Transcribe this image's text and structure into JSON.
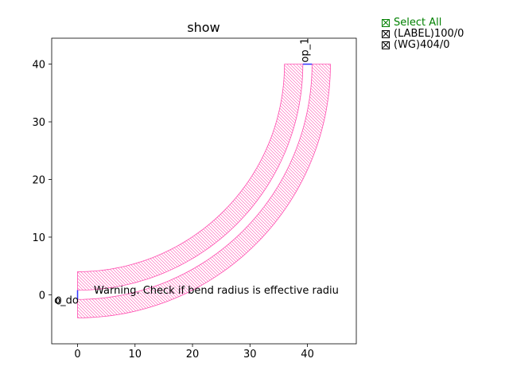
{
  "window": {
    "title": "show"
  },
  "chart_data": {
    "type": "layout",
    "title": "show",
    "xlabel": "",
    "ylabel": "",
    "xlim": [
      -4.5,
      48.5
    ],
    "ylim": [
      -8.5,
      44.5
    ],
    "x_ticks": [
      0,
      10,
      20,
      30,
      40
    ],
    "y_ticks": [
      0,
      10,
      20,
      30,
      40
    ],
    "grid": false,
    "colors": {
      "waveguide": "#ff4fb0",
      "port": "#3333ff",
      "text": "#000000"
    },
    "bend": {
      "radius": 40,
      "outer_width": 8,
      "gap": 1.6,
      "center": [
        0,
        40
      ]
    },
    "ports": [
      {
        "name": "o1",
        "label": "o_do",
        "x": 0,
        "y": 0
      },
      {
        "name": "o2",
        "label": "op_1",
        "x": 40,
        "y": 40
      }
    ],
    "tick_stub_label": "0",
    "annotation": {
      "text": "Warning. Check if bend radius is effective radiu",
      "x": 3,
      "y": 0.3
    }
  },
  "legend": {
    "items": [
      {
        "label": "Select All",
        "checked": true,
        "color": "#008000"
      },
      {
        "label": "(LABEL)100/0",
        "checked": true,
        "color": "#000000"
      },
      {
        "label": "(WG)404/0",
        "checked": true,
        "color": "#000000"
      }
    ]
  }
}
